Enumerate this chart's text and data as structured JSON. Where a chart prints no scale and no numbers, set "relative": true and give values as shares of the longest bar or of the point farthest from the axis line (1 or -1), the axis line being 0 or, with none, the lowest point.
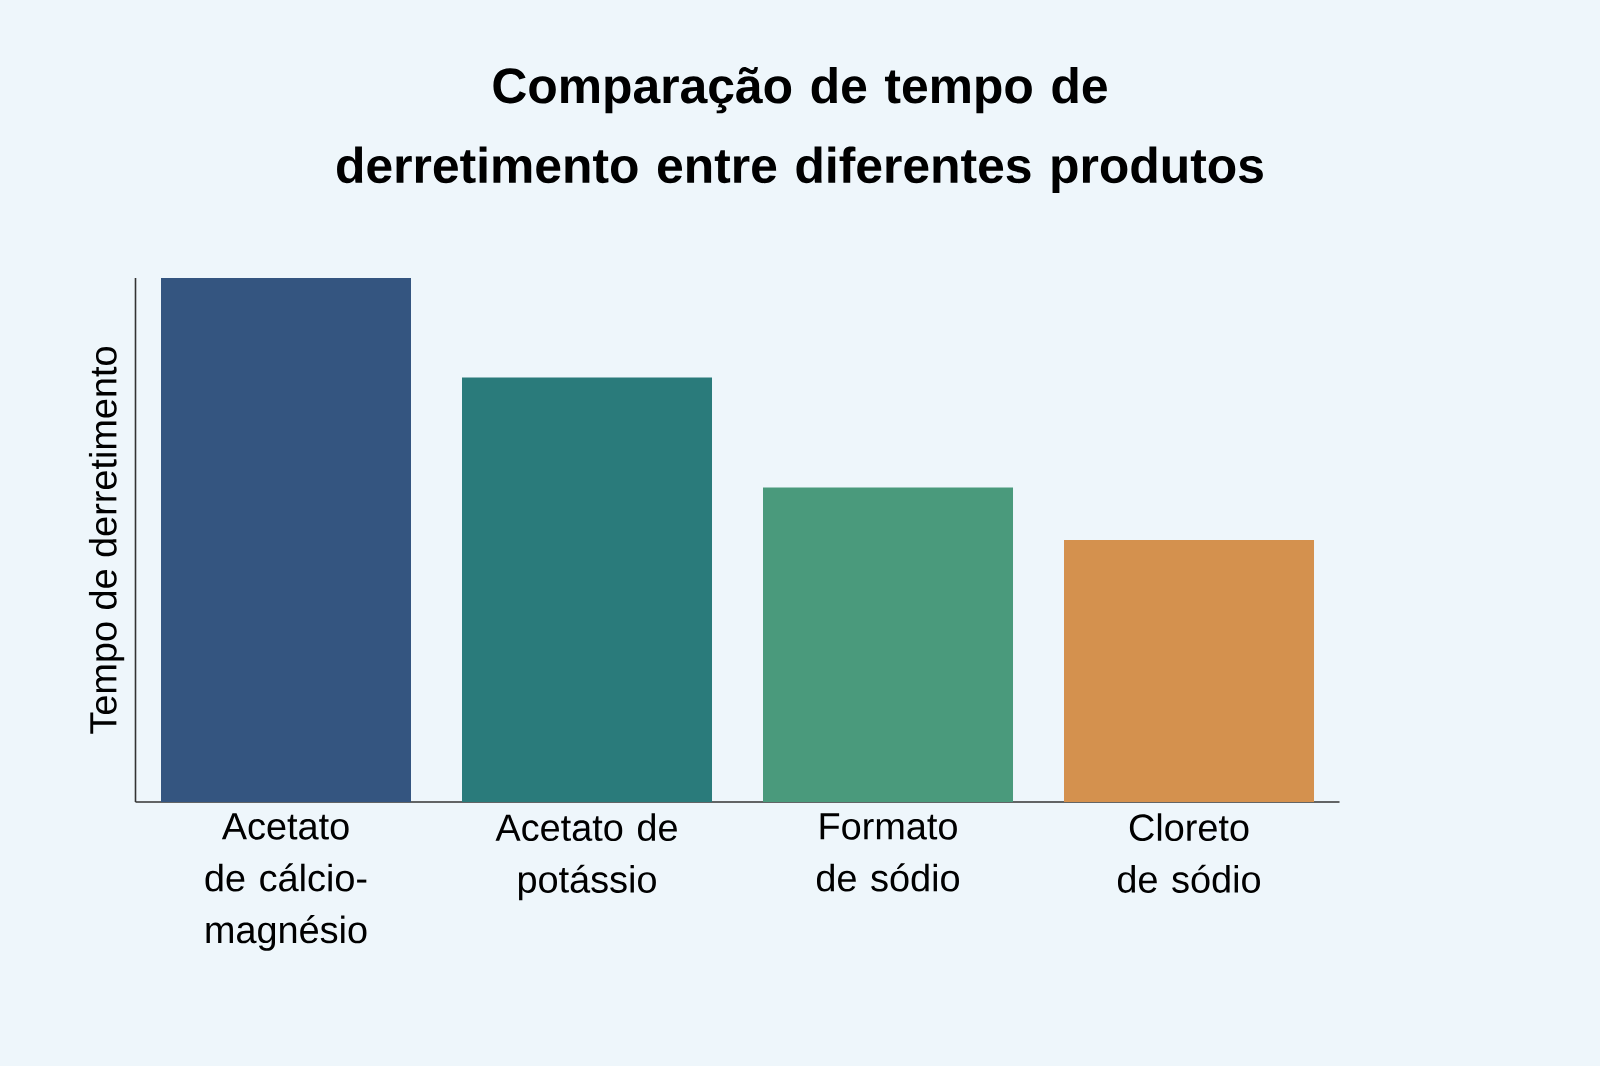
{
  "chart_data": {
    "type": "bar",
    "title": "Comparação de tempo de derretimento entre diferentes produtos",
    "ylabel": "Tempo de derretimento",
    "relative": true,
    "categories": [
      "Acetato de cálcio-magnésio",
      "Acetato de potássio",
      "Formato de sódio",
      "Cloreto de sódio"
    ],
    "values": [
      1,
      0.81,
      0.6,
      0.5
    ],
    "colors": [
      "#345580",
      "#2a7b7b",
      "#4a9a7c",
      "#d4914e"
    ]
  }
}
